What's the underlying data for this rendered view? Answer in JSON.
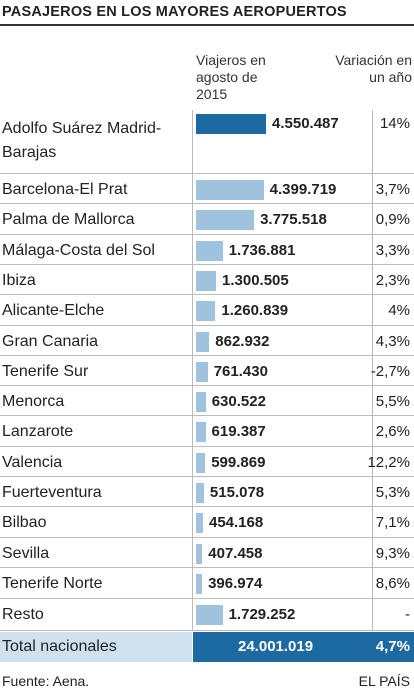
{
  "chart_data": {
    "type": "bar",
    "title": "PASAJEROS EN LOS MAYORES AEROPUERTOS",
    "value_header": "Viajeros en agosto de 2015",
    "variation_header": "Variación en un año",
    "categories": [
      "Adolfo Suárez Madrid-Barajas",
      "Barcelona-El Prat",
      "Palma de Mallorca",
      "Málaga-Costa del Sol",
      "Ibiza",
      "Alicante-Elche",
      "Gran Canaria",
      "Tenerife Sur",
      "Menorca",
      "Lanzarote",
      "Valencia",
      "Fuerteventura",
      "Bilbao",
      "Sevilla",
      "Tenerife Norte",
      "Resto"
    ],
    "values": [
      4550487,
      4399719,
      3775518,
      1736881,
      1300505,
      1260839,
      862932,
      761430,
      630522,
      619387,
      599869,
      515078,
      454168,
      407458,
      396974,
      1729252
    ],
    "value_labels": [
      "4.550.487",
      "4.399.719",
      "3.775.518",
      "1.736.881",
      "1.300.505",
      "1.260.839",
      "862.932",
      "761.430",
      "630.522",
      "619.387",
      "599.869",
      "515.078",
      "454.168",
      "407.458",
      "396.974",
      "1.729.252"
    ],
    "colors": [
      "#1d6aa3",
      "#9fc2de",
      "#9fc2de",
      "#9fc2de",
      "#9fc2de",
      "#9fc2de",
      "#9fc2de",
      "#9fc2de",
      "#9fc2de",
      "#9fc2de",
      "#9fc2de",
      "#9fc2de",
      "#9fc2de",
      "#9fc2de",
      "#9fc2de",
      "#9fc2de"
    ],
    "variations": [
      14,
      3.7,
      0.9,
      3.3,
      2.3,
      4,
      4.3,
      -2.7,
      5.5,
      2.6,
      12.2,
      5.3,
      7.1,
      9.3,
      8.6,
      null
    ],
    "variation_labels": [
      "14%",
      "3,7%",
      "0,9%",
      "3,3%",
      "2,3%",
      "4%",
      "4,3%",
      "-2,7%",
      "5,5%",
      "2,6%",
      "12,2%",
      "5,3%",
      "7,1%",
      "9,3%",
      "8,6%",
      "-"
    ],
    "total": {
      "label": "Total nacionales",
      "value": 24001019,
      "value_label": "24.001.019",
      "variation": 4.7,
      "variation_label": "4,7%"
    },
    "source": "Fuente: Aena.",
    "credit": "EL PAÍS"
  }
}
